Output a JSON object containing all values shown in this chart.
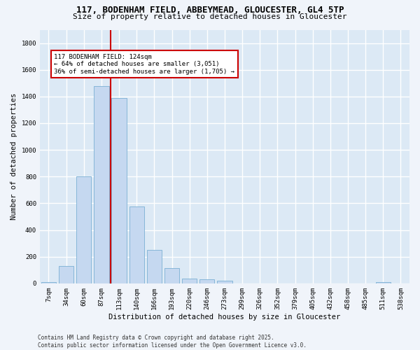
{
  "title_line1": "117, BODENHAM FIELD, ABBEYMEAD, GLOUCESTER, GL4 5TP",
  "title_line2": "Size of property relative to detached houses in Gloucester",
  "xlabel": "Distribution of detached houses by size in Gloucester",
  "ylabel": "Number of detached properties",
  "categories": [
    "7sqm",
    "34sqm",
    "60sqm",
    "87sqm",
    "113sqm",
    "140sqm",
    "166sqm",
    "193sqm",
    "220sqm",
    "246sqm",
    "273sqm",
    "299sqm",
    "326sqm",
    "352sqm",
    "379sqm",
    "405sqm",
    "432sqm",
    "458sqm",
    "485sqm",
    "511sqm",
    "538sqm"
  ],
  "values": [
    10,
    130,
    800,
    1480,
    1390,
    575,
    250,
    115,
    35,
    30,
    20,
    0,
    0,
    0,
    0,
    0,
    0,
    0,
    0,
    10,
    0
  ],
  "bar_color": "#c5d8f0",
  "bar_edge_color": "#7bafd4",
  "vline_color": "#cc0000",
  "vline_x_index": 4,
  "annotation_text": "117 BODENHAM FIELD: 124sqm\n← 64% of detached houses are smaller (3,051)\n36% of semi-detached houses are larger (1,705) →",
  "annotation_box_facecolor": "#ffffff",
  "annotation_box_edgecolor": "#cc0000",
  "ylim": [
    0,
    1900
  ],
  "yticks": [
    0,
    200,
    400,
    600,
    800,
    1000,
    1200,
    1400,
    1600,
    1800
  ],
  "bg_color": "#dce9f5",
  "grid_color": "#ffffff",
  "fig_facecolor": "#f0f4fa",
  "footer": "Contains HM Land Registry data © Crown copyright and database right 2025.\nContains public sector information licensed under the Open Government Licence v3.0.",
  "title_fontsize": 9,
  "subtitle_fontsize": 8,
  "axis_label_fontsize": 7.5,
  "tick_fontsize": 6.5,
  "annotation_fontsize": 6.5,
  "footer_fontsize": 5.5
}
